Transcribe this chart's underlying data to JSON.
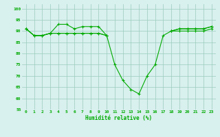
{
  "line_top": [
    91,
    88,
    88,
    89,
    93,
    93,
    91,
    92,
    92,
    92,
    88,
    null,
    null,
    null,
    null,
    null,
    null,
    null,
    null,
    null,
    null,
    null,
    null,
    null
  ],
  "line_mid": [
    91,
    88,
    88,
    89,
    89,
    89,
    89,
    89,
    89,
    89,
    88,
    null,
    null,
    null,
    null,
    null,
    null,
    null,
    90,
    90,
    90,
    90,
    90,
    91
  ],
  "line_bot": [
    91,
    88,
    88,
    89,
    89,
    89,
    89,
    89,
    89,
    89,
    88,
    75,
    68,
    64,
    62,
    70,
    75,
    88,
    90,
    91,
    91,
    91,
    91,
    92
  ],
  "line_end": [
    null,
    null,
    null,
    null,
    null,
    null,
    null,
    null,
    null,
    null,
    null,
    null,
    null,
    null,
    null,
    null,
    null,
    null,
    90,
    91,
    91,
    91,
    91,
    92
  ],
  "x": [
    0,
    1,
    2,
    3,
    4,
    5,
    6,
    7,
    8,
    9,
    10,
    11,
    12,
    13,
    14,
    15,
    16,
    17,
    18,
    19,
    20,
    21,
    22,
    23
  ],
  "ylim": [
    55,
    102
  ],
  "yticks": [
    55,
    60,
    65,
    70,
    75,
    80,
    85,
    90,
    95,
    100
  ],
  "xlabel": "Humidité relative (%)",
  "line_color": "#00aa00",
  "bg_color": "#d8f0ee",
  "grid_color": "#99ccbb"
}
